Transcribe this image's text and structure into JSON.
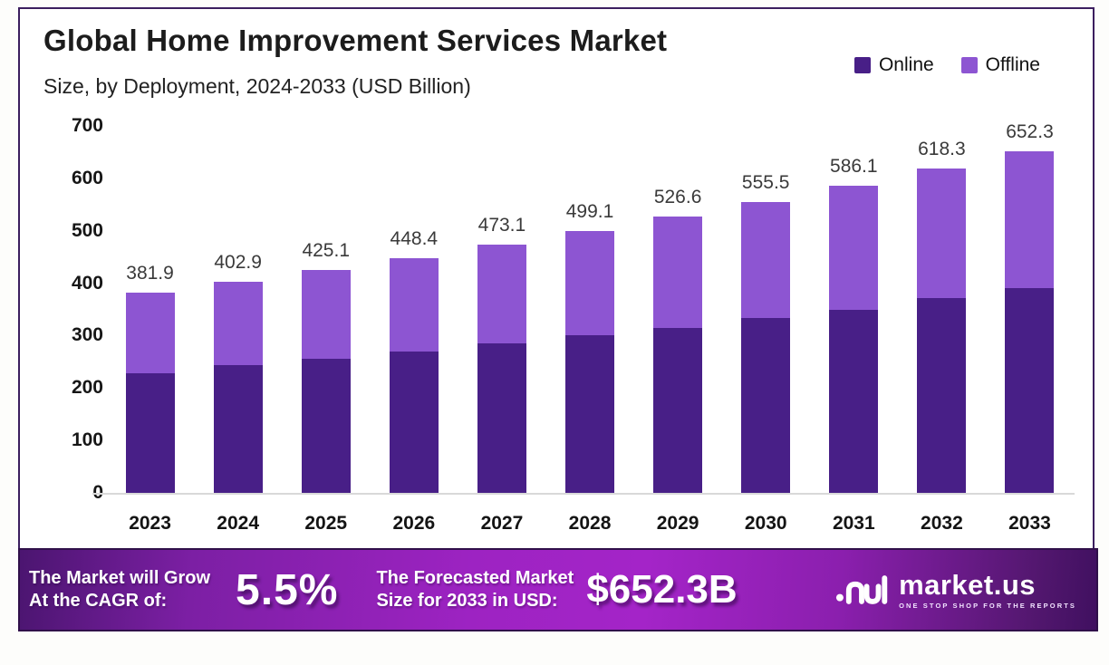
{
  "header": {
    "title": "Global Home Improvement Services Market",
    "subtitle": "Size, by Deployment, 2024-2033 (USD Billion)"
  },
  "legend": [
    {
      "label": "Online",
      "color": "#481f87"
    },
    {
      "label": "Offline",
      "color": "#8d55d2"
    }
  ],
  "chart_data": {
    "type": "bar",
    "stacked": true,
    "title": "Global Home Improvement Services Market Size, by Deployment, 2024-2033 (USD Billion)",
    "categories": [
      "2023",
      "2024",
      "2025",
      "2026",
      "2027",
      "2028",
      "2029",
      "2030",
      "2031",
      "2032",
      "2033"
    ],
    "series": [
      {
        "name": "Online",
        "color": "#481f87",
        "values": [
          229.0,
          243.0,
          256.0,
          269.0,
          285.0,
          300.0,
          315.0,
          333.0,
          349.0,
          371.0,
          390.0
        ]
      },
      {
        "name": "Offline",
        "color": "#8d55d2",
        "values": [
          152.9,
          159.9,
          169.1,
          179.4,
          188.1,
          199.1,
          211.6,
          222.5,
          237.1,
          247.3,
          262.3
        ]
      }
    ],
    "totals": [
      381.9,
      402.9,
      425.1,
      448.4,
      473.1,
      499.1,
      526.6,
      555.5,
      586.1,
      618.3,
      652.3
    ],
    "total_labels": [
      "381.9",
      "402.9",
      "425.1",
      "448.4",
      "473.1",
      "499.1",
      "526.6",
      "555.5",
      "586.1",
      "618.3",
      "652.3"
    ],
    "xlabel": "",
    "ylabel": "",
    "ylim": [
      0,
      700
    ],
    "yticks": [
      0,
      100,
      200,
      300,
      400,
      500,
      600,
      700
    ],
    "grid": false,
    "legend_position": "top-right"
  },
  "footer": {
    "cagr_label_line1": "The Market will Grow",
    "cagr_label_line2": "At the CAGR of:",
    "cagr_value": "5.5%",
    "forecast_label_line1": "The Forecasted Market",
    "forecast_label_line2": "Size for 2033 in USD:",
    "forecast_value": "$652.3B",
    "brand": {
      "name": "market.us",
      "tagline": "ONE STOP SHOP FOR THE REPORTS"
    }
  },
  "colors": {
    "online": "#481f87",
    "offline": "#8d55d2",
    "frame_border": "#3b1e5e",
    "value_label": "#3a3a3a",
    "baseline": "#d9d9d9",
    "banner_center": "#a424c8",
    "banner_edge": "#4b1570"
  }
}
